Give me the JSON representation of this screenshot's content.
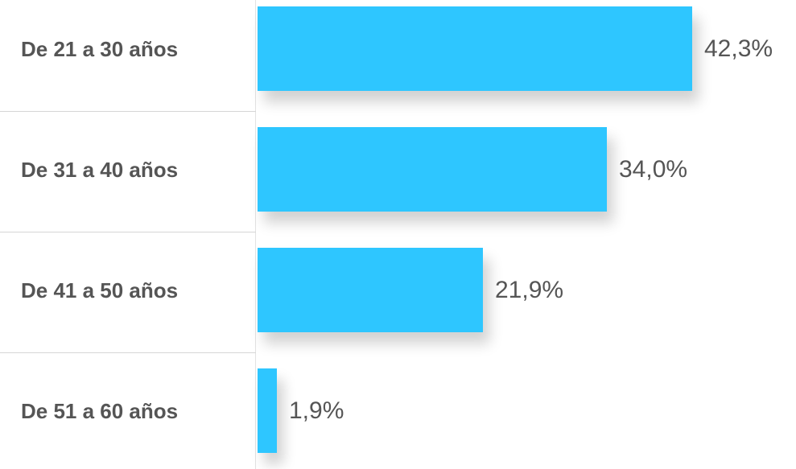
{
  "chart_data": {
    "type": "bar",
    "orientation": "horizontal",
    "categories": [
      "De 21 a 30 años",
      "De 31 a 40 años",
      "De 41 a 50 años",
      "De 51 a 60 años"
    ],
    "values": [
      42.3,
      34.0,
      21.9,
      1.9
    ],
    "value_labels": [
      "42,3%",
      "34,0%",
      "21,9%",
      "1,9%"
    ],
    "unit": "%",
    "xlim": [
      0,
      42.3
    ],
    "grid": false,
    "legend": "none",
    "bar_color": "#2ec6ff",
    "text_color": "#555555"
  }
}
